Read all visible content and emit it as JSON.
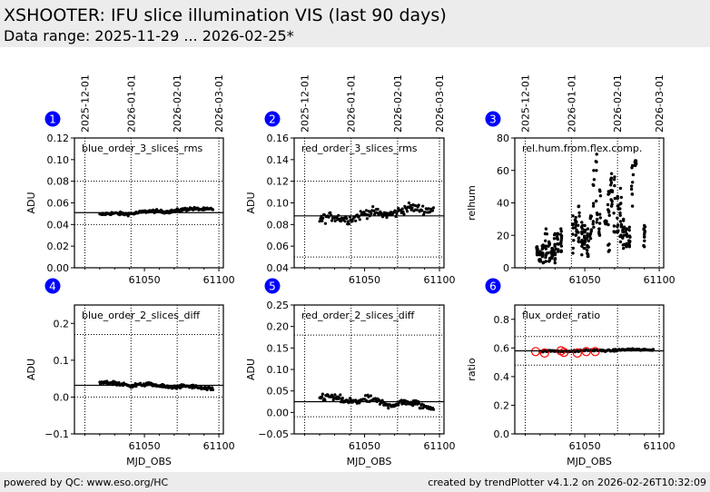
{
  "header": {
    "title": "XSHOOTER: IFU slice illumination VIS (last 90 days)",
    "subtitle": "Data range: 2025-11-29 ... 2026-02-25*"
  },
  "footer": {
    "left": "powered by QC: www.eso.org/HC",
    "right": "created by trendPlotter v4.1.2 on 2026-02-26T10:32:09"
  },
  "colors": {
    "badge": "#0000ff",
    "points": "#000000",
    "outlier_ring": "#ff0000"
  },
  "chart_data": [
    {
      "type": "scatter",
      "badge": "1",
      "label": "blue_order_3_slices_rms",
      "ylabel": "ADU",
      "xlabel": "",
      "xlim": [
        61003,
        61103
      ],
      "ylim": [
        0.0,
        0.12
      ],
      "yticks": [
        "0.00",
        "0.02",
        "0.04",
        "0.06",
        "0.08",
        "0.10",
        "0.12"
      ],
      "ytick_values": [
        0.0,
        0.02,
        0.04,
        0.06,
        0.08,
        0.1,
        0.12
      ],
      "xticks": [
        "61050",
        "61100"
      ],
      "xtick_values": [
        61050,
        61100
      ],
      "date_ticks": [
        "2025-12-01",
        "2026-01-01",
        "2026-02-01",
        "2026-03-01"
      ],
      "date_tick_mjd": [
        61010,
        61041,
        61072,
        61100
      ],
      "reference_line": 0.051,
      "limit_lines": [
        0.04,
        0.08
      ],
      "trend": {
        "start": 0.049,
        "end": 0.055,
        "noise": 0.0012,
        "x_start": 61020,
        "x_end": 61096,
        "n": 160
      },
      "outliers": []
    },
    {
      "type": "scatter",
      "badge": "2",
      "label": "red_order_3_slices_rms",
      "ylabel": "ADU",
      "xlabel": "",
      "xlim": [
        61003,
        61103
      ],
      "ylim": [
        0.04,
        0.16
      ],
      "yticks": [
        "0.04",
        "0.06",
        "0.08",
        "0.10",
        "0.12",
        "0.14",
        "0.16"
      ],
      "ytick_values": [
        0.04,
        0.06,
        0.08,
        0.1,
        0.12,
        0.14,
        0.16
      ],
      "xticks": [
        "61050",
        "61100"
      ],
      "xtick_values": [
        61050,
        61100
      ],
      "date_ticks": [
        "2025-12-01",
        "2026-01-01",
        "2026-02-01",
        "2026-03-01"
      ],
      "date_tick_mjd": [
        61010,
        61041,
        61072,
        61100
      ],
      "reference_line": 0.088,
      "limit_lines": [
        0.05,
        0.12
      ],
      "trend": {
        "start": 0.084,
        "end": 0.096,
        "noise": 0.0035,
        "x_start": 61020,
        "x_end": 61096,
        "n": 140
      },
      "outliers": []
    },
    {
      "type": "scatter",
      "badge": "3",
      "label": "rel.hum.from.flex.comp.",
      "ylabel": "relhum",
      "xlabel": "",
      "xlim": [
        61003,
        61103
      ],
      "ylim": [
        0,
        80
      ],
      "yticks": [
        "0",
        "20",
        "40",
        "60",
        "80"
      ],
      "ytick_values": [
        0,
        20,
        40,
        60,
        80
      ],
      "xticks": [
        "61050",
        "61100"
      ],
      "xtick_values": [
        61050,
        61100
      ],
      "date_ticks": [
        "2025-12-01",
        "2026-01-01",
        "2026-02-01",
        "2026-03-01"
      ],
      "date_tick_mjd": [
        61010,
        61041,
        61072,
        61100
      ],
      "reference_line": null,
      "limit_lines": [],
      "clusters": [
        {
          "x": 61018,
          "lo": 8,
          "hi": 13
        },
        {
          "x": 61020,
          "lo": 4,
          "hi": 10
        },
        {
          "x": 61022,
          "lo": 3,
          "hi": 14
        },
        {
          "x": 61024,
          "lo": 4,
          "hi": 24
        },
        {
          "x": 61026,
          "lo": 4,
          "hi": 16
        },
        {
          "x": 61028,
          "lo": 6,
          "hi": 12
        },
        {
          "x": 61030,
          "lo": 3,
          "hi": 21
        },
        {
          "x": 61032,
          "lo": 10,
          "hi": 21
        },
        {
          "x": 61034,
          "lo": 10,
          "hi": 24
        },
        {
          "x": 61042,
          "lo": 9,
          "hi": 32
        },
        {
          "x": 61044,
          "lo": 20,
          "hi": 31
        },
        {
          "x": 61046,
          "lo": 16,
          "hi": 38
        },
        {
          "x": 61048,
          "lo": 8,
          "hi": 28
        },
        {
          "x": 61050,
          "lo": 12,
          "hi": 26
        },
        {
          "x": 61052,
          "lo": 7,
          "hi": 24
        },
        {
          "x": 61054,
          "lo": 18,
          "hi": 32
        },
        {
          "x": 61056,
          "lo": 25,
          "hi": 60
        },
        {
          "x": 61058,
          "lo": 28,
          "hi": 70
        },
        {
          "x": 61060,
          "lo": 20,
          "hi": 48
        },
        {
          "x": 61064,
          "lo": 27,
          "hi": 29
        },
        {
          "x": 61066,
          "lo": 10,
          "hi": 47
        },
        {
          "x": 61068,
          "lo": 38,
          "hi": 58
        },
        {
          "x": 61070,
          "lo": 22,
          "hi": 56
        },
        {
          "x": 61072,
          "lo": 22,
          "hi": 44
        },
        {
          "x": 61074,
          "lo": 16,
          "hi": 49
        },
        {
          "x": 61076,
          "lo": 12,
          "hi": 30
        },
        {
          "x": 61078,
          "lo": 13,
          "hi": 24
        },
        {
          "x": 61080,
          "lo": 13,
          "hi": 25
        },
        {
          "x": 61082,
          "lo": 38,
          "hi": 63
        },
        {
          "x": 61084,
          "lo": 63,
          "hi": 66
        },
        {
          "x": 61090,
          "lo": 13,
          "hi": 26
        }
      ],
      "outliers": []
    },
    {
      "type": "scatter",
      "badge": "4",
      "label": "blue_order_2_slices_diff",
      "ylabel": "ADU",
      "xlabel": "MJD_OBS",
      "xlim": [
        61003,
        61103
      ],
      "ylim": [
        -0.1,
        0.25
      ],
      "yticks": [
        "−0.1",
        "0.0",
        "0.1",
        "0.2"
      ],
      "ytick_values": [
        -0.1,
        0.0,
        0.1,
        0.2
      ],
      "xticks": [
        "61050",
        "61100"
      ],
      "xtick_values": [
        61050,
        61100
      ],
      "date_ticks": [],
      "date_tick_mjd": [
        61010,
        61041,
        61072,
        61100
      ],
      "reference_line": 0.032,
      "limit_lines": [
        0.0,
        0.17
      ],
      "trend": {
        "start": 0.038,
        "end": 0.024,
        "noise": 0.004,
        "x_start": 61020,
        "x_end": 61096,
        "n": 160
      },
      "outliers": []
    },
    {
      "type": "scatter",
      "badge": "5",
      "label": "red_order_2_slices_diff",
      "ylabel": "ADU",
      "xlabel": "MJD_OBS",
      "xlim": [
        61003,
        61103
      ],
      "ylim": [
        -0.05,
        0.25
      ],
      "yticks": [
        "−0.05",
        "0.00",
        "0.05",
        "0.10",
        "0.15",
        "0.20",
        "0.25"
      ],
      "ytick_values": [
        -0.05,
        0.0,
        0.05,
        0.1,
        0.15,
        0.2,
        0.25
      ],
      "xticks": [
        "61050",
        "61100"
      ],
      "xtick_values": [
        61050,
        61100
      ],
      "date_ticks": [],
      "date_tick_mjd": [
        61010,
        61041,
        61072,
        61100
      ],
      "reference_line": 0.025,
      "limit_lines": [
        -0.01,
        0.18
      ],
      "trend": {
        "start": 0.034,
        "end": 0.015,
        "noise": 0.007,
        "x_start": 61020,
        "x_end": 61096,
        "n": 150
      },
      "outliers": []
    },
    {
      "type": "scatter",
      "badge": "6",
      "label": "flux_order_ratio",
      "ylabel": "ratio",
      "xlabel": "MJD_OBS",
      "xlim": [
        61003,
        61103
      ],
      "ylim": [
        0.0,
        0.9
      ],
      "yticks": [
        "0.0",
        "0.2",
        "0.4",
        "0.6",
        "0.8"
      ],
      "ytick_values": [
        0.0,
        0.2,
        0.4,
        0.6,
        0.8
      ],
      "xticks": [
        "61050",
        "61100"
      ],
      "xtick_values": [
        61050,
        61100
      ],
      "date_ticks": [],
      "date_tick_mjd": [
        61010,
        61041,
        61072,
        61100
      ],
      "reference_line": 0.58,
      "limit_lines": [
        0.48,
        0.68
      ],
      "trend": {
        "start": 0.575,
        "end": 0.59,
        "noise": 0.005,
        "x_start": 61020,
        "x_end": 61096,
        "n": 160
      },
      "outliers": [
        {
          "x": 61017,
          "y": 0.575
        },
        {
          "x": 61023,
          "y": 0.565
        },
        {
          "x": 61034,
          "y": 0.58
        },
        {
          "x": 61036,
          "y": 0.57
        },
        {
          "x": 61045,
          "y": 0.565
        },
        {
          "x": 61051,
          "y": 0.575
        },
        {
          "x": 61057,
          "y": 0.575
        }
      ]
    }
  ]
}
